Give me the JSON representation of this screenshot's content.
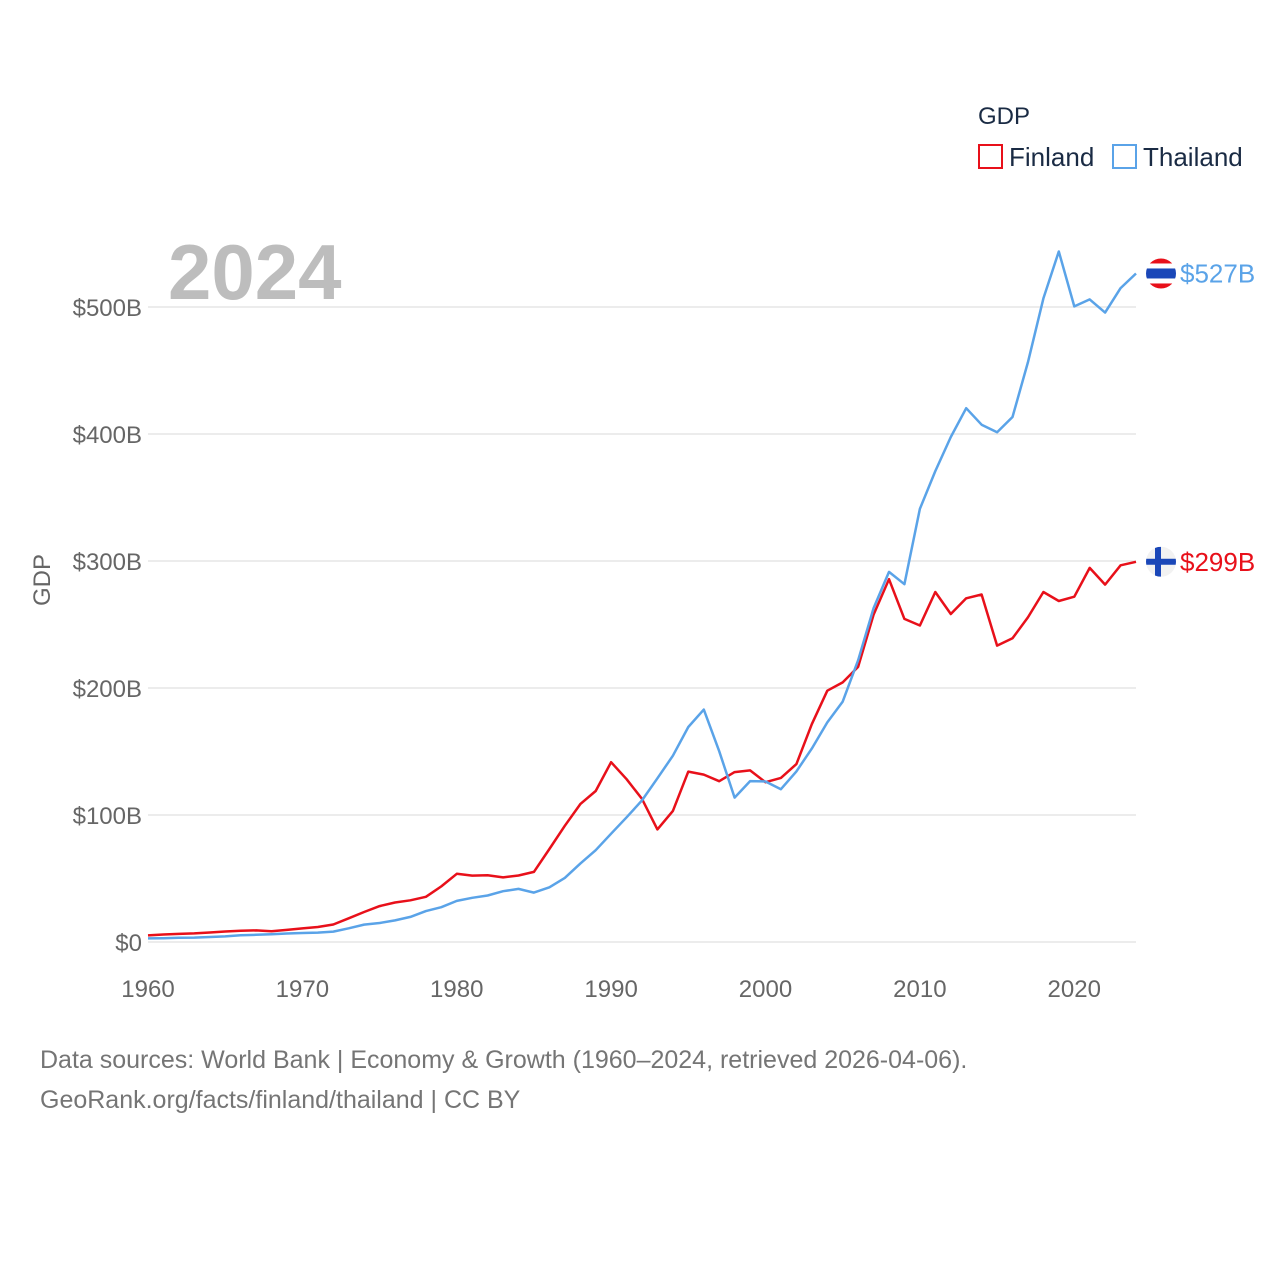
{
  "chart_data": {
    "type": "line",
    "year_label": "2024",
    "legend_title": "GDP",
    "ylabel": "GDP",
    "xlim": [
      1960,
      2024
    ],
    "ylim": [
      0,
      550
    ],
    "y_ticks": [
      {
        "value": 0,
        "label": "$0"
      },
      {
        "value": 100,
        "label": "$100B"
      },
      {
        "value": 200,
        "label": "$200B"
      },
      {
        "value": 300,
        "label": "$300B"
      },
      {
        "value": 400,
        "label": "$400B"
      },
      {
        "value": 500,
        "label": "$500B"
      }
    ],
    "x_ticks": [
      {
        "value": 1960,
        "label": "1960"
      },
      {
        "value": 1970,
        "label": "1970"
      },
      {
        "value": 1980,
        "label": "1980"
      },
      {
        "value": 1990,
        "label": "1990"
      },
      {
        "value": 2000,
        "label": "2000"
      },
      {
        "value": 2010,
        "label": "2010"
      },
      {
        "value": 2020,
        "label": "2020"
      }
    ],
    "x": [
      1960,
      1961,
      1962,
      1963,
      1964,
      1965,
      1966,
      1967,
      1968,
      1969,
      1970,
      1971,
      1972,
      1973,
      1974,
      1975,
      1976,
      1977,
      1978,
      1979,
      1980,
      1981,
      1982,
      1983,
      1984,
      1985,
      1986,
      1987,
      1988,
      1989,
      1990,
      1991,
      1992,
      1993,
      1994,
      1995,
      1996,
      1997,
      1998,
      1999,
      2000,
      2001,
      2002,
      2003,
      2004,
      2005,
      2006,
      2007,
      2008,
      2009,
      2010,
      2011,
      2012,
      2013,
      2014,
      2015,
      2016,
      2017,
      2018,
      2019,
      2020,
      2021,
      2022,
      2023,
      2024
    ],
    "series": [
      {
        "name": "Finland",
        "color": "#e8101a",
        "end_label": "$299B",
        "flag": "finland-flag-icon",
        "values": [
          5.2,
          5.9,
          6.4,
          6.8,
          7.5,
          8.3,
          8.9,
          9.1,
          8.4,
          9.5,
          10.7,
          11.8,
          13.8,
          18.7,
          23.6,
          28.3,
          31.1,
          32.8,
          35.6,
          43.8,
          53.7,
          52.3,
          52.6,
          50.9,
          52.4,
          55.2,
          73.2,
          91.5,
          108.6,
          118.9,
          141.6,
          128.2,
          112.7,
          88.7,
          103.2,
          134.2,
          131.8,
          126.6,
          133.8,
          135.1,
          125.8,
          129.2,
          140.1,
          171.5,
          197.9,
          204.4,
          216.6,
          257.8,
          285.7,
          254.4,
          249.2,
          275.6,
          258.3,
          270.6,
          273.6,
          233.4,
          239.1,
          255.6,
          275.6,
          268.5,
          271.9,
          294.6,
          281.4,
          296.6,
          299.4
        ]
      },
      {
        "name": "Thailand",
        "color": "#5aa3e8",
        "end_label": "$527B",
        "flag": "thailand-flag-icon",
        "values": [
          2.8,
          3.0,
          3.3,
          3.5,
          3.9,
          4.4,
          5.3,
          5.7,
          6.1,
          6.7,
          7.1,
          7.4,
          8.2,
          10.8,
          13.7,
          15.0,
          17.0,
          19.8,
          24.3,
          27.4,
          32.4,
          34.8,
          36.6,
          40.0,
          41.8,
          38.9,
          43.1,
          50.5,
          61.7,
          72.3,
          85.3,
          98.2,
          111.5,
          128.9,
          146.7,
          169.3,
          183.0,
          150.2,
          113.7,
          126.7,
          126.4,
          120.3,
          134.3,
          152.3,
          172.9,
          189.3,
          221.8,
          262.9,
          291.4,
          281.7,
          341.1,
          370.8,
          397.6,
          420.3,
          407.3,
          401.3,
          413.4,
          456.4,
          506.8,
          543.7,
          500.5,
          506.0,
          495.6,
          514.9,
          526.4
        ]
      }
    ]
  },
  "source_line1": "Data sources: World Bank | Economy & Growth (1960–2024, retrieved 2026-04-06).",
  "source_line2": "GeoRank.org/facts/finland/thailand | CC BY"
}
